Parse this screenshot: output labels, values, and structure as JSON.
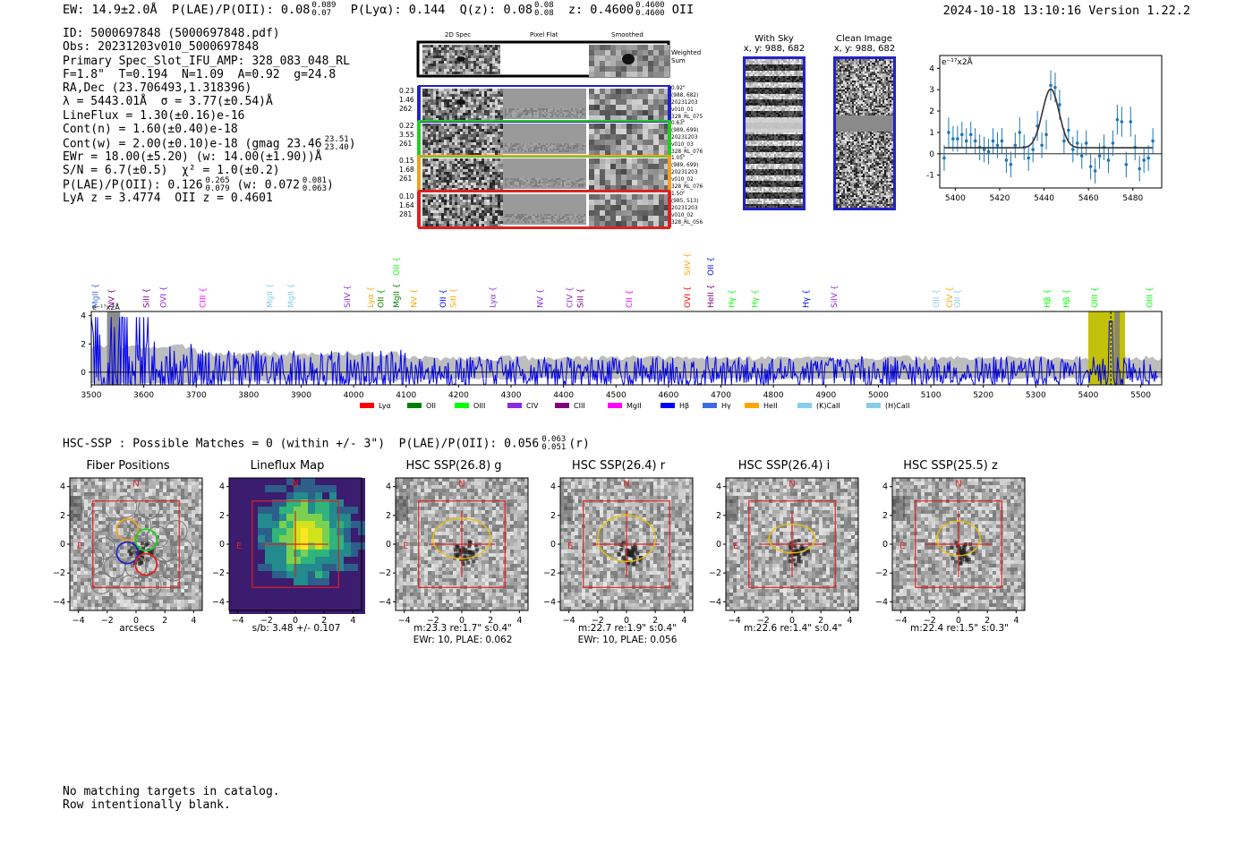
{
  "header": {
    "topline": "EW: 14.9±2.0Å  P(LAE)/P(OII): 0.08 0.089/0.07  P(Lyα): 0.144  Q(z): 0.08 0.08/0.08  z: 0.4600 0.4600/0.4600 OII",
    "ew": "EW: 14.9±2.0Å",
    "plae": "P(LAE)/P(OII): 0.08",
    "plae_hi": "0.089",
    "plae_lo": "0.07",
    "plya": "P(Lyα): 0.144",
    "qz": "Q(z): 0.08",
    "qz_hi": "0.08",
    "qz_lo": "0.08",
    "z": "z: 0.4600",
    "z_hi": "0.4600",
    "z_lo": "0.4600",
    "z_line": "OII",
    "timestamp": "2024-10-18 13:10:16  Version 1.22.2"
  },
  "info": {
    "id": "ID: 5000697848 (5000697848.pdf)",
    "obs": "Obs: 20231203v010_5000697848",
    "primary": "Primary Spec_Slot_IFU_AMP: 328_083_048_RL",
    "params": "F=1.8\"  T=0.194  N=1.09  A=0.92  g=24.8",
    "radec": "RA,Dec (23.706493,1.318396)",
    "lambda": "λ = 5443.01Å  σ = 3.77(±0.54)Å",
    "lineflux": "LineFlux = 1.30(±0.16)e-16",
    "contn": "Cont(n) = 1.60(±0.40)e-18",
    "contw": "Cont(w) = 2.00(±0.10)e-18 (gmag 23.46",
    "contw_hi": "23.51",
    "contw_lo": "23.40",
    "ewr": "EWr = 18.00(±5.20) (w: 14.00(±1.90))Å",
    "sn": "S/N = 6.7(±0.5)  χ² = 1.0(±0.2)",
    "plae": "P(LAE)/P(OII): 0.126",
    "plae_hi": "0.265",
    "plae_lo": "0.079",
    "plae_w": "(w: 0.072",
    "plae_w_hi": "0.081",
    "plae_w_lo": "0.063",
    "lya": "LyA z = 3.4774  OII z = 0.4601"
  },
  "panels2d": {
    "col_titles": [
      "2D Spec",
      "Pixel Flat",
      "Smoothed"
    ],
    "weighted": "Weighted Sum",
    "rows": [
      {
        "left": [
          "0.23",
          "1.46",
          "262"
        ],
        "right": [
          "0.92\"",
          "(988, 682)",
          "20231203",
          "v010_01",
          "328_RL_075"
        ],
        "color": "#2222c8"
      },
      {
        "left": [
          "0.22",
          "3.55",
          "261"
        ],
        "right": [
          "0.63\"",
          "(989, 699)",
          "20231203",
          "v010_03",
          "328_RL_076"
        ],
        "color": "#22cc22"
      },
      {
        "left": [
          "0.15",
          "1.68",
          "261"
        ],
        "right": [
          "1.05\"",
          "(989, 699)",
          "20231203",
          "v010_02",
          "328_RL_076"
        ],
        "color": "#f0a020"
      },
      {
        "left": [
          "0.10",
          "1.64",
          "281"
        ],
        "right": [
          "1.50\"",
          "(985, 513)",
          "20231203",
          "v010_02",
          "328_RL_056"
        ],
        "color": "#e02020"
      }
    ]
  },
  "cutouts": {
    "with_sky_title": "With Sky",
    "with_sky_xy": "x, y: 988, 682",
    "clean_title": "Clean Image",
    "clean_xy": "x, y: 988, 682"
  },
  "chart_data": [
    {
      "type": "scatter",
      "name": "line-fit",
      "ylabel": "e⁻¹⁷x2Å",
      "xlim": [
        5393,
        5493
      ],
      "ylim": [
        -1.6,
        4.6
      ],
      "xticks": [
        5400,
        5420,
        5440,
        5460,
        5480
      ],
      "yticks": [
        -1,
        0,
        1,
        2,
        3,
        4
      ],
      "points_x": [
        5395,
        5397,
        5399,
        5401,
        5403,
        5405,
        5407,
        5409,
        5411,
        5413,
        5415,
        5417,
        5419,
        5421,
        5423,
        5425,
        5427,
        5429,
        5431,
        5433,
        5435,
        5437,
        5439,
        5441,
        5443,
        5445,
        5447,
        5449,
        5451,
        5453,
        5455,
        5457,
        5459,
        5461,
        5463,
        5465,
        5467,
        5469,
        5471,
        5473,
        5475,
        5477,
        5479,
        5481,
        5483,
        5485,
        5487,
        5489
      ],
      "points_y": [
        -0.2,
        1.0,
        0.7,
        0.7,
        0.9,
        0.6,
        0.9,
        0.6,
        0.3,
        0.2,
        0.1,
        0.6,
        0.4,
        0.6,
        -0.3,
        -0.5,
        0.4,
        1.0,
        0.3,
        -0.2,
        0.2,
        1.3,
        0.4,
        0.9,
        3.2,
        3.1,
        2.3,
        0.6,
        1.1,
        0.2,
        0.5,
        -0.1,
        0.5,
        -0.6,
        -0.8,
        -0.1,
        0.3,
        -0.3,
        0.5,
        1.6,
        1.5,
        -0.5,
        1.5,
        0.3,
        -0.7,
        -0.3,
        -0.2,
        0.6
      ],
      "errors": [
        0.6,
        0.7,
        0.6,
        0.6,
        0.6,
        0.6,
        0.6,
        0.6,
        0.6,
        0.6,
        0.6,
        0.6,
        0.6,
        0.6,
        0.6,
        0.6,
        0.6,
        0.7,
        0.6,
        0.6,
        0.6,
        0.7,
        0.6,
        0.7,
        0.7,
        0.7,
        0.7,
        0.6,
        0.6,
        0.6,
        0.6,
        0.6,
        0.6,
        0.6,
        0.6,
        0.6,
        0.6,
        0.6,
        0.6,
        0.7,
        0.7,
        0.6,
        0.7,
        0.6,
        0.6,
        0.6,
        0.6,
        0.6
      ],
      "fit": {
        "center": 5443.0,
        "sigma": 3.77,
        "amplitude": 2.75,
        "continuum": 0.28
      }
    },
    {
      "type": "line",
      "name": "full-spectrum",
      "ylabel": "e⁻¹⁷x2Å",
      "xlim": [
        3500,
        5540
      ],
      "ylim": [
        -0.9,
        4.3
      ],
      "xticks": [
        3500,
        3600,
        3700,
        3800,
        3900,
        4000,
        4100,
        4200,
        4300,
        4400,
        4500,
        4600,
        4700,
        4800,
        4900,
        5000,
        5100,
        5200,
        5300,
        5400,
        5500
      ],
      "yticks": [
        0,
        2,
        4
      ],
      "noise_seed": 7,
      "highlight_band": [
        5400,
        5470
      ],
      "masked_region": [
        3530,
        3555
      ],
      "line_marker": 5443,
      "legend": [
        {
          "label": "Lyα",
          "color": "#ff0000"
        },
        {
          "label": "OII",
          "color": "#008000"
        },
        {
          "label": "OIII",
          "color": "#00ff00"
        },
        {
          "label": "CIV",
          "color": "#8a2be2"
        },
        {
          "label": "CIII",
          "color": "#800080"
        },
        {
          "label": "MgII",
          "color": "#ff00ff"
        },
        {
          "label": "Hβ",
          "color": "#0000ff"
        },
        {
          "label": "Hγ",
          "color": "#4169e1"
        },
        {
          "label": "HeII",
          "color": "#ffa500"
        },
        {
          "label": "(K)CaII",
          "color": "#87ceeb"
        },
        {
          "label": "(H)CaII",
          "color": "#87ceeb"
        }
      ],
      "line_labels": [
        {
          "text": "MgII",
          "x": 3508,
          "color": "#4169e1",
          "level": 0
        },
        {
          "text": "NV",
          "x": 3538,
          "color": "#800080",
          "level": 0
        },
        {
          "text": "SiII",
          "x": 3605,
          "color": "#800080",
          "level": 0
        },
        {
          "text": "OVI",
          "x": 3637,
          "color": "#8a2be2",
          "level": 0
        },
        {
          "text": "CIII",
          "x": 3712,
          "color": "#ff00ff",
          "level": 0
        },
        {
          "text": "MgII",
          "x": 3840,
          "color": "#87ceeb",
          "level": 0
        },
        {
          "text": "MgII",
          "x": 3880,
          "color": "#87ceeb",
          "level": 0
        },
        {
          "text": "SiIV",
          "x": 3988,
          "color": "#8a2be2",
          "level": 0
        },
        {
          "text": "Lyα",
          "x": 4032,
          "color": "#ffa500",
          "level": 0
        },
        {
          "text": "OII",
          "x": 4052,
          "color": "#008000",
          "level": 0
        },
        {
          "text": "MgII",
          "x": 4082,
          "color": "#008000",
          "level": 0
        },
        {
          "text": "OII",
          "x": 4082,
          "color": "#00ff00",
          "level": 1
        },
        {
          "text": "NV",
          "x": 4115,
          "color": "#ffa500",
          "level": 0
        },
        {
          "text": "OII",
          "x": 4170,
          "color": "#0000ff",
          "level": 0
        },
        {
          "text": "SiII",
          "x": 4190,
          "color": "#ffa500",
          "level": 0
        },
        {
          "text": "Lyα",
          "x": 4265,
          "color": "#8a2be2",
          "level": 0
        },
        {
          "text": "NV",
          "x": 4355,
          "color": "#8a2be2",
          "level": 0
        },
        {
          "text": "CIV",
          "x": 4412,
          "color": "#8a2be2",
          "level": 0
        },
        {
          "text": "SiII",
          "x": 4432,
          "color": "#800080",
          "level": 0
        },
        {
          "text": "CII",
          "x": 4525,
          "color": "#ff00ff",
          "level": 0
        },
        {
          "text": "SiIV",
          "x": 4636,
          "color": "#ffa500",
          "level": 1
        },
        {
          "text": "OVI",
          "x": 4636,
          "color": "#ff0000",
          "level": 0
        },
        {
          "text": "OII",
          "x": 4680,
          "color": "#0000ff",
          "level": 1
        },
        {
          "text": "HeII",
          "x": 4680,
          "color": "#800080",
          "level": 0
        },
        {
          "text": "Hγ",
          "x": 4720,
          "color": "#00ff00",
          "level": 0
        },
        {
          "text": "Hγ",
          "x": 4765,
          "color": "#00ff00",
          "level": 0
        },
        {
          "text": "Hγ",
          "x": 4862,
          "color": "#0000ff",
          "level": 0
        },
        {
          "text": "SiIV",
          "x": 4916,
          "color": "#8a2be2",
          "level": 0
        },
        {
          "text": "OII",
          "x": 5110,
          "color": "#87ceeb",
          "level": 0
        },
        {
          "text": "CIV",
          "x": 5136,
          "color": "#ffa500",
          "level": 0
        },
        {
          "text": "OII",
          "x": 5150,
          "color": "#87ceeb",
          "level": 0
        },
        {
          "text": "Hβ",
          "x": 5322,
          "color": "#00ff00",
          "level": 0
        },
        {
          "text": "Hβ",
          "x": 5358,
          "color": "#00ff00",
          "level": 0
        },
        {
          "text": "OIII",
          "x": 5412,
          "color": "#00ff00",
          "level": 0
        },
        {
          "text": "OIII",
          "x": 5517,
          "color": "#00ff00",
          "level": 0
        }
      ]
    }
  ],
  "hsc": {
    "header": "HSC-SSP : Possible Matches = 0 (within +/- 3\")  P(LAE)/P(OII): 0.056",
    "header_hi": "0.063",
    "header_lo": "0.051",
    "header_band": "(r)",
    "compass_n": "N",
    "compass_e": "E",
    "ticks": [
      "−4",
      "−2",
      "0",
      "2",
      "4"
    ],
    "panels": [
      {
        "title": "Fiber Positions",
        "line1": "arcsecs",
        "line2": ""
      },
      {
        "title": "Lineflux Map",
        "line1": "s/b: 3.48 +/- 0.107",
        "line2": ""
      },
      {
        "title": "HSC SSP(26.8) g",
        "line1": "m:23.3  re:1.7\"  s:0.4\"",
        "line2": "EWr: 10, PLAE: 0.062"
      },
      {
        "title": "HSC SSP(26.4) r",
        "line1": "m:22.7  re:1.9\"  s:0.4\"",
        "line2": "EWr: 10, PLAE: 0.056"
      },
      {
        "title": "HSC SSP(26.4) i",
        "line1": "m:22.6  re:1.4\"  s:0.4\"",
        "line2": ""
      },
      {
        "title": "HSC SSP(25.5) z",
        "line1": "m:22.4  re:1.5\"  s:0.3\"",
        "line2": ""
      }
    ]
  },
  "catalog": {
    "line1": "No matching targets in catalog.",
    "line2": "Row intentionally blank."
  }
}
